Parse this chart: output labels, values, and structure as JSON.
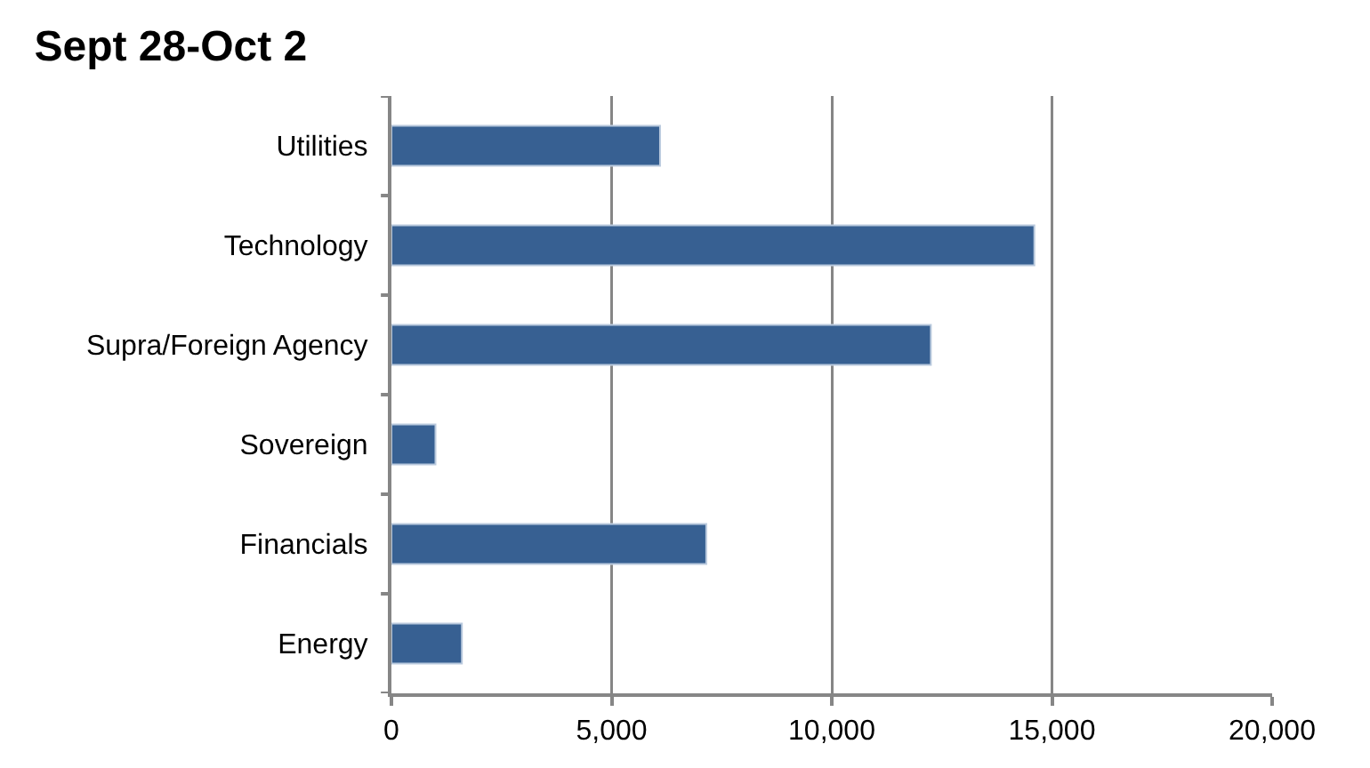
{
  "chart_data": {
    "type": "bar",
    "orientation": "horizontal",
    "title": "Sept 28-Oct 2",
    "categories": [
      "Utilities",
      "Technology",
      "Supra/Foreign Agency",
      "Sovereign",
      "Financials",
      "Energy"
    ],
    "values": [
      6100,
      14600,
      12250,
      1000,
      7150,
      1600
    ],
    "color": "#376092",
    "xlim": [
      0,
      20000
    ],
    "xticks": [
      {
        "value": 0,
        "label": "0"
      },
      {
        "value": 5000,
        "label": "5,000"
      },
      {
        "value": 10000,
        "label": "10,000"
      },
      {
        "value": 15000,
        "label": "15,000"
      },
      {
        "value": 20000,
        "label": "20,000"
      }
    ],
    "grid": "x",
    "legend": false
  }
}
